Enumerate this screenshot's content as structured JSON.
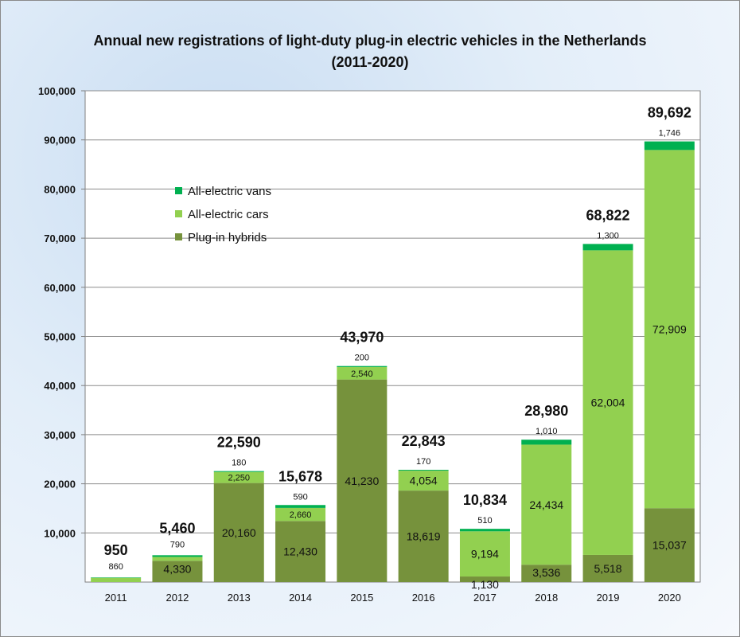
{
  "chart_data": {
    "type": "bar",
    "stacked": true,
    "title": "Annual new registrations of light-duty plug-in electric vehicles in the Netherlands",
    "subtitle": "(2011-2020)",
    "xlabel": "",
    "ylabel": "",
    "ylim": [
      0,
      100000
    ],
    "yticks": [
      "10,000",
      "20,000",
      "30,000",
      "40,000",
      "50,000",
      "60,000",
      "70,000",
      "80,000",
      "90,000",
      "100,000"
    ],
    "legend_position": "upper-left",
    "categories": [
      "2011",
      "2012",
      "2013",
      "2014",
      "2015",
      "2016",
      "2017",
      "2018",
      "2019",
      "2020"
    ],
    "series": [
      {
        "name": "Plug-in hybrids",
        "color": "#76923c",
        "values": [
          0,
          4330,
          20160,
          12430,
          41230,
          18619,
          1130,
          3536,
          5518,
          15037
        ],
        "labels": [
          "",
          "4,330",
          "20,160",
          "12,430",
          "41,230",
          "18,619",
          "1,130",
          "3,536",
          "5,518",
          "15,037"
        ]
      },
      {
        "name": "All-electric cars",
        "color": "#92d050",
        "values": [
          860,
          790,
          2250,
          2660,
          2540,
          4054,
          9194,
          24434,
          62004,
          72909
        ],
        "labels": [
          "860",
          "790",
          "2,250",
          "2,660",
          "2,540",
          "4,054",
          "9,194",
          "24,434",
          "62,004",
          "72,909"
        ]
      },
      {
        "name": "All-electric vans",
        "color": "#00b050",
        "values": [
          90,
          340,
          180,
          590,
          200,
          170,
          510,
          1010,
          1300,
          1746
        ],
        "labels": [
          "",
          "",
          "180",
          "590",
          "200",
          "170",
          "510",
          "1,010",
          "1,300",
          "1,746"
        ]
      }
    ],
    "totals": [
      "950",
      "5,460",
      "22,590",
      "15,678",
      "43,970",
      "22,843",
      "10,834",
      "28,980",
      "68,822",
      "89,692"
    ],
    "legend_order": [
      "All-electric vans",
      "All-electric cars",
      "Plug-in hybrids"
    ]
  }
}
